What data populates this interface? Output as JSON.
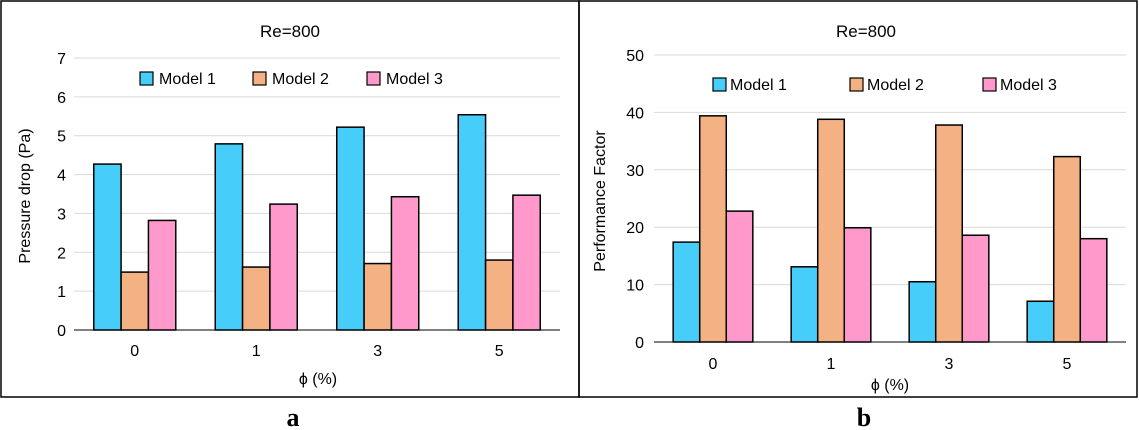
{
  "chart_data": [
    {
      "type": "bar",
      "panel_label": "a",
      "title": "Re=800",
      "xlabel": "ϕ (%)",
      "ylabel": "Pressure drop (Pa)",
      "categories": [
        "0",
        "1",
        "3",
        "5"
      ],
      "ylim": [
        0,
        7
      ],
      "yticks": [
        0,
        1,
        2,
        3,
        4,
        5,
        6,
        7
      ],
      "grid": true,
      "legend_position": "top",
      "series": [
        {
          "name": "Model 1",
          "color": "#47cdfa",
          "values": [
            4.27,
            4.79,
            5.22,
            5.54
          ]
        },
        {
          "name": "Model 2",
          "color": "#f4b183",
          "values": [
            1.49,
            1.62,
            1.71,
            1.8
          ]
        },
        {
          "name": "Model 3",
          "color": "#ff99cc",
          "values": [
            2.82,
            3.24,
            3.43,
            3.47
          ]
        }
      ]
    },
    {
      "type": "bar",
      "panel_label": "b",
      "title": "Re=800",
      "xlabel": "ϕ (%)",
      "ylabel": "Performance Factor",
      "categories": [
        "0",
        "1",
        "3",
        "5"
      ],
      "ylim": [
        0,
        50
      ],
      "yticks": [
        0,
        10,
        20,
        30,
        40,
        50
      ],
      "grid": true,
      "legend_position": "top",
      "series": [
        {
          "name": "Model 1",
          "color": "#47cdfa",
          "values": [
            17.4,
            13.1,
            10.5,
            7.1
          ]
        },
        {
          "name": "Model 2",
          "color": "#f4b183",
          "values": [
            39.4,
            38.8,
            37.8,
            32.3
          ]
        },
        {
          "name": "Model 3",
          "color": "#ff99cc",
          "values": [
            22.8,
            19.9,
            18.6,
            18.0
          ]
        }
      ]
    }
  ]
}
